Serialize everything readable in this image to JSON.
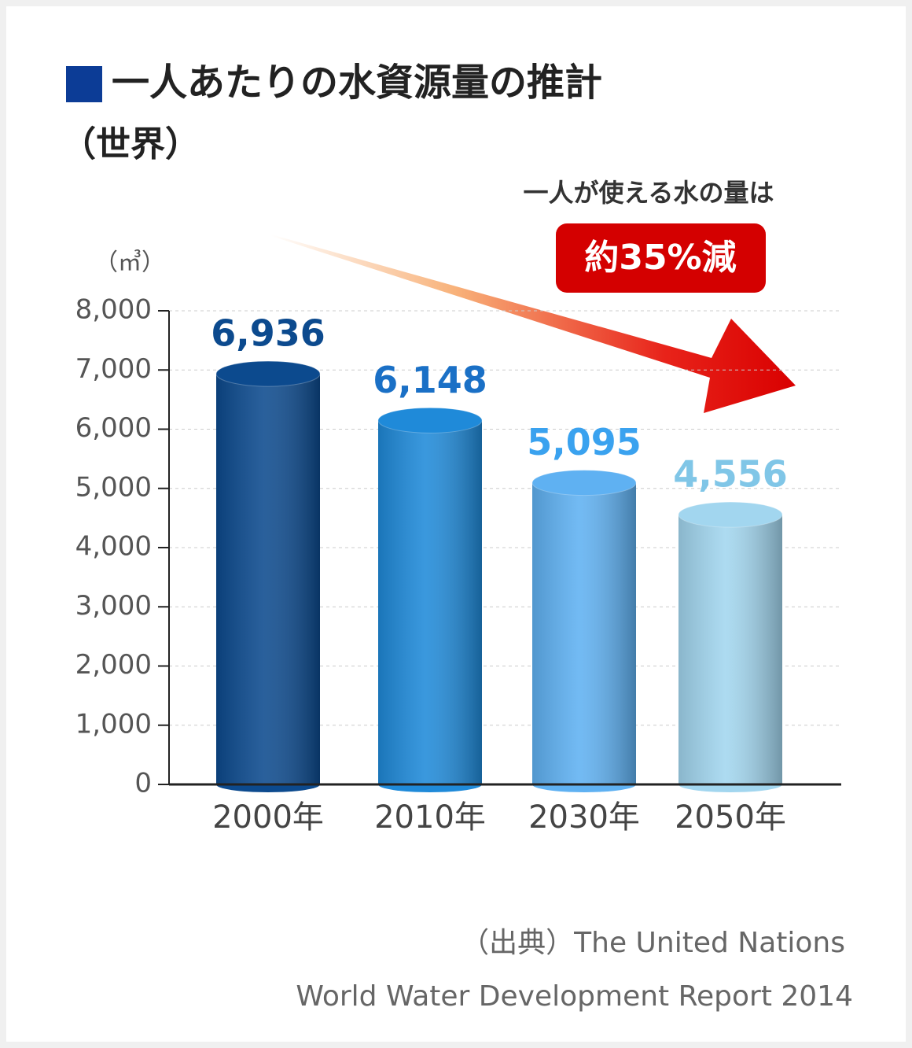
{
  "chart_data": {
    "type": "bar",
    "title": "一人あたりの水資源量の推計",
    "subtitle": "（世界）",
    "annotation": "一人が使える水の量は",
    "badge": "約35%減",
    "y_label": "（㎥）",
    "categories": [
      "2000年",
      "2010年",
      "2030年",
      "2050年"
    ],
    "values": [
      6936,
      6148,
      5095,
      4556
    ],
    "value_labels": [
      "6,936",
      "6,148",
      "5,095",
      "4,556"
    ],
    "colors": [
      "#0c4a8e",
      "#1f8ad9",
      "#5fb1f2",
      "#a2d6ef"
    ],
    "label_colors": [
      "#0c4a8e",
      "#1a70c6",
      "#3aa2ef",
      "#80c6e7"
    ],
    "ylim": [
      0,
      8000
    ],
    "yticks": [
      0,
      {
        "value": 1000,
        "label": "1,000"
      },
      {
        "value": 2000,
        "label": "2,000"
      },
      {
        "value": 3000,
        "label": "3,000"
      },
      {
        "value": 4000,
        "label": "4,000"
      },
      {
        "value": 5000,
        "label": "5,000"
      },
      {
        "value": 6000,
        "label": "6,000"
      },
      {
        "value": 7000,
        "label": "7,000"
      },
      {
        "value": 8000,
        "label": "8,000"
      }
    ],
    "grid": true,
    "source": [
      "（出典）The United Nations",
      "World Water Development Report 2014"
    ]
  }
}
